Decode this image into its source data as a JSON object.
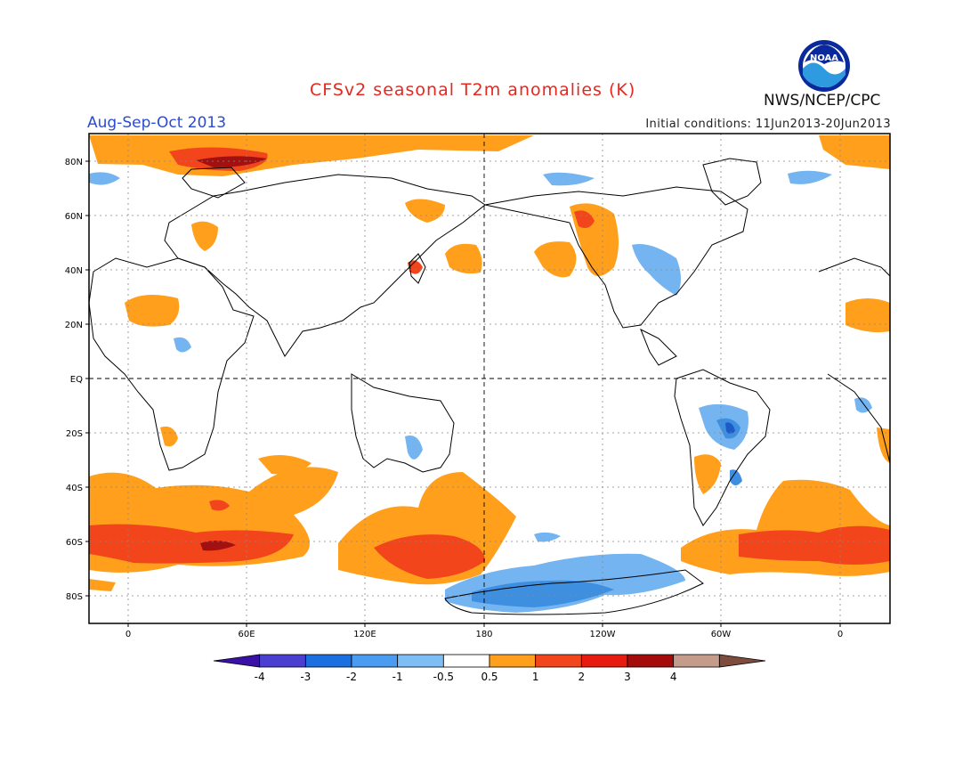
{
  "header": {
    "title": "CFSv2 seasonal T2m anomalies (K)",
    "agency": "NWS/NCEP/CPC",
    "season": "Aug-Sep-Oct 2013",
    "initial_conditions": "Initial conditions: 11Jun2013-20Jun2013",
    "logo_text": "NOAA"
  },
  "map": {
    "lon_ticks": [
      "0",
      "60E",
      "120E",
      "180",
      "120W",
      "60W",
      "0"
    ],
    "lat_ticks": [
      "80N",
      "60N",
      "40N",
      "20N",
      "EQ",
      "20S",
      "40S",
      "60S",
      "80S"
    ],
    "colors": {
      "land_outline": "#000000",
      "grid": "#888888",
      "warm_1": "#ff9f1c",
      "warm_2": "#f2451c",
      "warm_3": "#a31010",
      "cool_1": "#74b4f0",
      "cool_2": "#3f8fe0",
      "cool_3": "#1d5bc7"
    }
  },
  "colorbar": {
    "labels": [
      "-4",
      "-3",
      "-2",
      "-1",
      "-0.5",
      "0.5",
      "1",
      "2",
      "3",
      "4"
    ],
    "colors": [
      "#3a11a6",
      "#4b3fd1",
      "#1b6fe0",
      "#4b9bf0",
      "#7fbdf5",
      "#ffffff",
      "#ff9f1c",
      "#f2451c",
      "#e81b10",
      "#a40c0c",
      "#c59b8c",
      "#7d4c3c"
    ]
  }
}
